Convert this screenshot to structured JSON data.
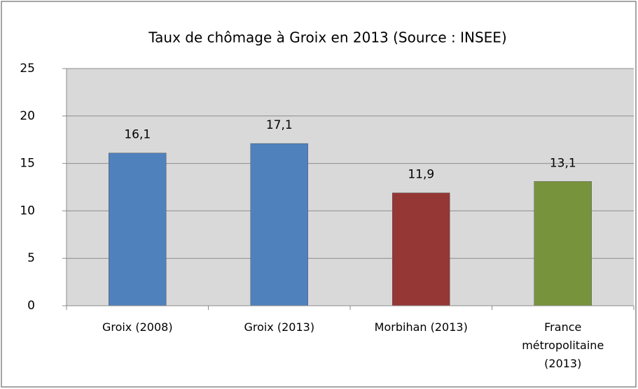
{
  "chart_data": {
    "type": "bar",
    "title": "Taux de chômage à Groix en 2013 (Source : INSEE)",
    "categories": [
      "Groix (2008)",
      "Groix (2013)",
      "Morbihan (2013)",
      "France métropolitaine (2013)"
    ],
    "values": [
      16.1,
      17.1,
      11.9,
      13.1
    ],
    "value_labels": [
      "16,1",
      "17,1",
      "11,9",
      "13,1"
    ],
    "colors": [
      "#4f81bd",
      "#4f81bd",
      "#953735",
      "#77933c"
    ],
    "ylim": [
      0,
      25
    ],
    "yticks": [
      0,
      5,
      10,
      15,
      20,
      25
    ],
    "grid": true
  }
}
